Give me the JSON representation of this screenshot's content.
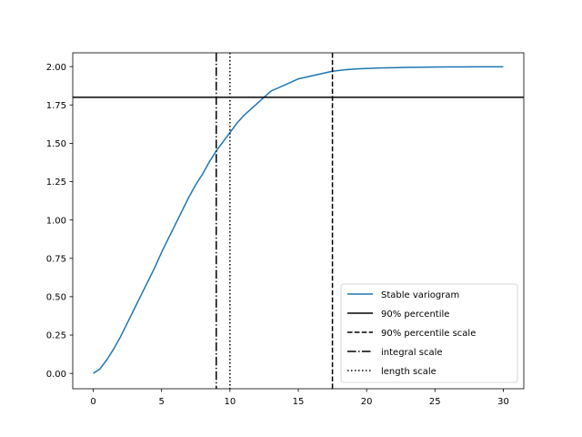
{
  "chart_data": {
    "type": "line",
    "title": "",
    "xlabel": "",
    "ylabel": "",
    "xlim": [
      -1.5,
      31.5
    ],
    "ylim": [
      -0.1,
      2.09
    ],
    "xticks": [
      0,
      5,
      10,
      15,
      20,
      25,
      30
    ],
    "xtick_labels": [
      "0",
      "5",
      "10",
      "15",
      "20",
      "25",
      "30"
    ],
    "yticks": [
      0.0,
      0.25,
      0.5,
      0.75,
      1.0,
      1.25,
      1.5,
      1.75,
      2.0
    ],
    "ytick_labels": [
      "0.00",
      "0.25",
      "0.50",
      "0.75",
      "1.00",
      "1.25",
      "1.50",
      "1.75",
      "2.00"
    ],
    "grid": false,
    "legend_position": "lower-right",
    "series": [
      {
        "name": "Stable variogram",
        "kind": "curve",
        "color": "#1f77b4",
        "dash": "solid",
        "x": [
          0,
          0.5,
          1,
          1.5,
          2,
          2.5,
          3,
          3.5,
          4,
          4.5,
          5,
          5.5,
          6,
          6.5,
          7,
          7.5,
          8,
          8.5,
          9,
          9.5,
          10,
          10.5,
          11,
          11.5,
          12,
          12.5,
          13,
          13.5,
          14,
          14.5,
          15,
          15.5,
          16,
          16.5,
          17,
          17.5,
          18,
          18.5,
          19,
          19.5,
          20,
          21,
          22,
          23,
          24,
          25,
          26,
          27,
          28,
          29,
          30
        ],
        "y": [
          0.0,
          0.03,
          0.09,
          0.16,
          0.24,
          0.33,
          0.42,
          0.51,
          0.6,
          0.69,
          0.79,
          0.88,
          0.97,
          1.06,
          1.15,
          1.23,
          1.3,
          1.38,
          1.45,
          1.51,
          1.57,
          1.63,
          1.68,
          1.72,
          1.76,
          1.8,
          1.84,
          1.86,
          1.88,
          1.9,
          1.92,
          1.93,
          1.94,
          1.95,
          1.96,
          1.97,
          1.975,
          1.98,
          1.983,
          1.986,
          1.988,
          1.991,
          1.993,
          1.995,
          1.996,
          1.997,
          1.998,
          1.998,
          1.999,
          1.999,
          1.999
        ]
      },
      {
        "name": "90% percentile",
        "kind": "hline",
        "y": 1.8,
        "color": "#000000",
        "dash": "solid"
      },
      {
        "name": "90% percentile scale",
        "kind": "vline",
        "x": 17.5,
        "color": "#000000",
        "dash": "dashed"
      },
      {
        "name": "integral scale",
        "kind": "vline",
        "x": 9.0,
        "color": "#000000",
        "dash": "dashdot"
      },
      {
        "name": "length scale",
        "kind": "vline",
        "x": 10.0,
        "color": "#000000",
        "dash": "dotted"
      }
    ]
  }
}
